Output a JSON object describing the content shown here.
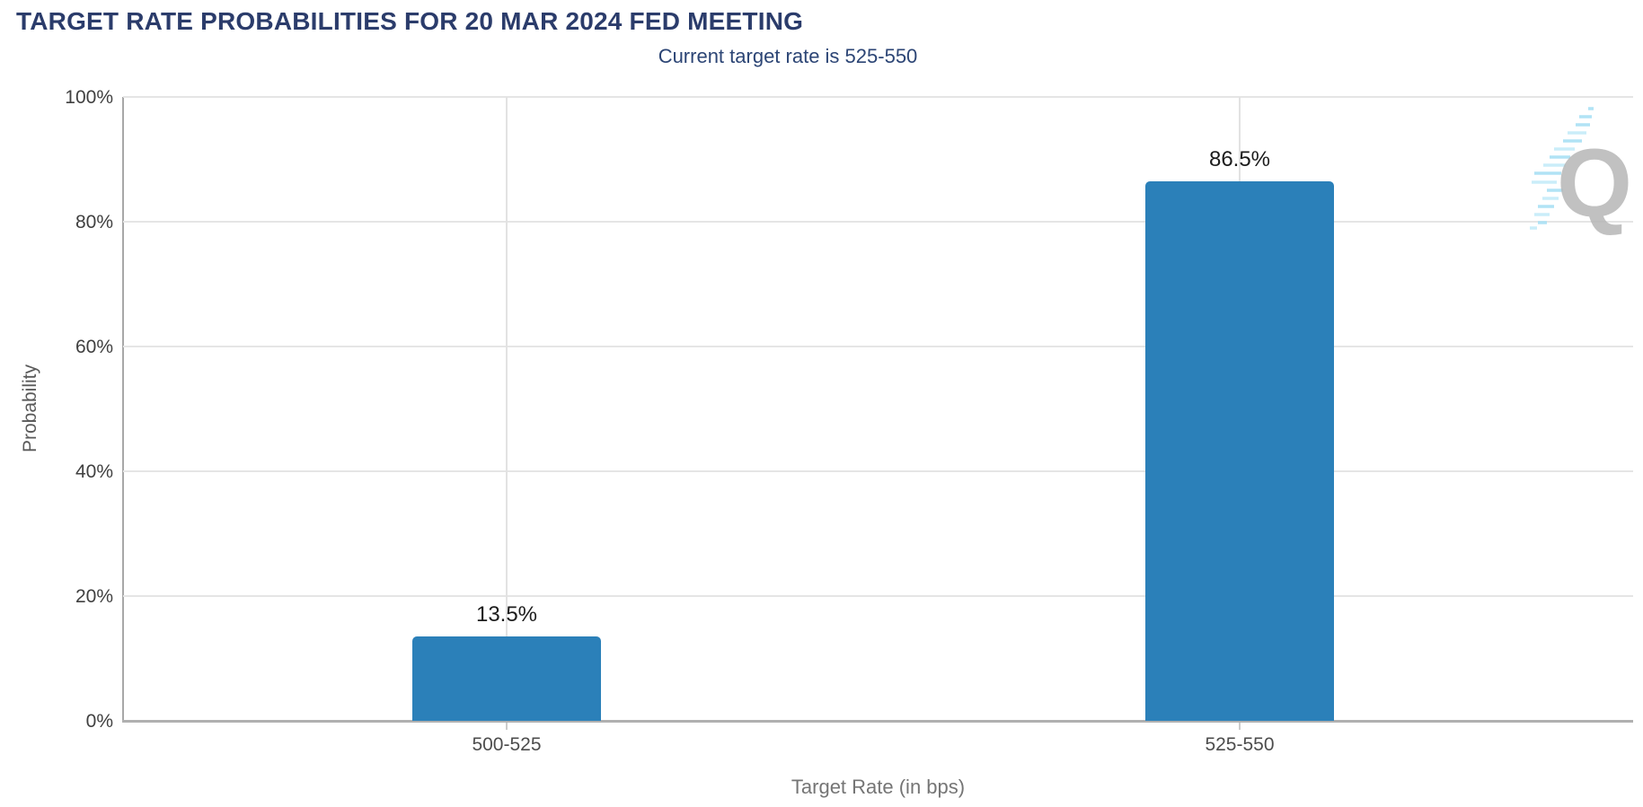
{
  "header": {
    "title": "TARGET RATE PROBABILITIES FOR 20 MAR 2024 FED MEETING",
    "subtitle": "Current target rate is 525-550"
  },
  "chart_data": {
    "type": "bar",
    "title": "TARGET RATE PROBABILITIES FOR 20 MAR 2024 FED MEETING",
    "subtitle": "Current target rate is 525-550",
    "categories": [
      "500-525",
      "525-550"
    ],
    "values": [
      13.5,
      86.5
    ],
    "value_labels": [
      "13.5%",
      "86.5%"
    ],
    "xlabel": "Target Rate (in bps)",
    "ylabel": "Probability",
    "ylim": [
      0,
      100
    ],
    "y_ticks": [
      {
        "value": 0,
        "label": "0%"
      },
      {
        "value": 20,
        "label": "20%"
      },
      {
        "value": 40,
        "label": "40%"
      },
      {
        "value": 60,
        "label": "60%"
      },
      {
        "value": 80,
        "label": "80%"
      },
      {
        "value": 100,
        "label": "100%"
      }
    ],
    "grid": "horizontal lines at y ticks, vertical lines at category centers",
    "legend": "none",
    "bar_color": "#2b80b9",
    "title_color": "#2b3c6b",
    "subtitle_color": "#2c4575"
  },
  "watermark": {
    "letter": "Q"
  }
}
